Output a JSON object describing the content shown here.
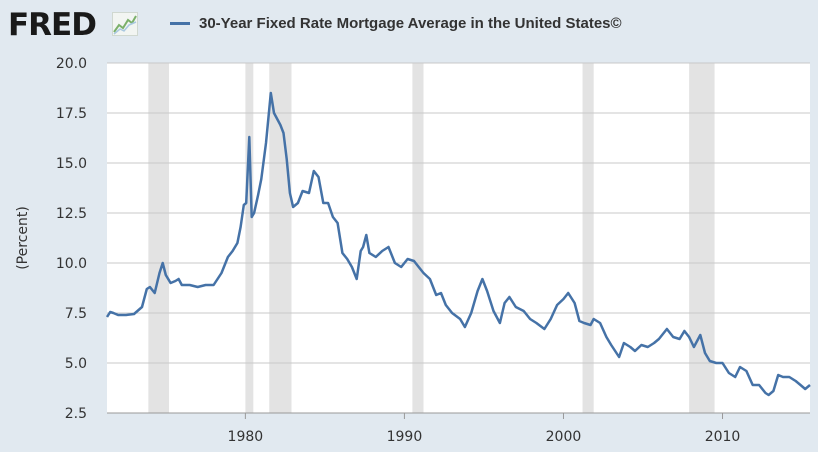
{
  "header": {
    "logo_text": "FRED",
    "logo_icon": "line-chart-icon"
  },
  "colors": {
    "background": "#e1e9f0",
    "plot_background": "#ffffff",
    "series": "#4572a7",
    "recession": "#e3e3e3",
    "grid": "#c8c8c8"
  },
  "chart_data": {
    "type": "line",
    "title": "",
    "xlabel": "",
    "ylabel": "(Percent)",
    "xlim": [
      1971.3,
      2015.5
    ],
    "ylim": [
      2.5,
      20.0
    ],
    "yticks": [
      2.5,
      5.0,
      7.5,
      10.0,
      12.5,
      15.0,
      17.5,
      20.0
    ],
    "ytick_labels": [
      "2.5",
      "5.0",
      "7.5",
      "10.0",
      "12.5",
      "15.0",
      "17.5",
      "20.0"
    ],
    "xticks": [
      1980,
      1990,
      2000,
      2010
    ],
    "xtick_labels": [
      "1980",
      "1990",
      "2000",
      "2010"
    ],
    "grid": "horizontal",
    "legend": "top",
    "recessions": [
      [
        1973.9,
        1975.2
      ],
      [
        1980.0,
        1980.5
      ],
      [
        1981.5,
        1982.9
      ],
      [
        1990.5,
        1991.2
      ],
      [
        2001.2,
        2001.9
      ],
      [
        2007.9,
        2009.5
      ]
    ],
    "series": [
      {
        "name": "30-Year Fixed Rate Mortgage Average in the United States©",
        "x": [
          1971.3,
          1971.5,
          1971.7,
          1972.0,
          1972.5,
          1973.0,
          1973.5,
          1973.8,
          1974.0,
          1974.3,
          1974.6,
          1974.8,
          1975.0,
          1975.3,
          1975.6,
          1975.8,
          1976.0,
          1976.5,
          1977.0,
          1977.5,
          1978.0,
          1978.5,
          1978.9,
          1979.2,
          1979.5,
          1979.7,
          1979.9,
          1980.05,
          1980.25,
          1980.4,
          1980.55,
          1980.8,
          1981.0,
          1981.3,
          1981.6,
          1981.8,
          1982.0,
          1982.2,
          1982.4,
          1982.6,
          1982.8,
          1983.0,
          1983.3,
          1983.6,
          1984.0,
          1984.3,
          1984.6,
          1984.9,
          1985.2,
          1985.5,
          1985.8,
          1986.1,
          1986.4,
          1986.7,
          1987.0,
          1987.25,
          1987.4,
          1987.6,
          1987.8,
          1988.2,
          1988.6,
          1989.0,
          1989.4,
          1989.8,
          1990.2,
          1990.6,
          1990.9,
          1991.2,
          1991.6,
          1992.0,
          1992.3,
          1992.6,
          1993.0,
          1993.5,
          1993.8,
          1994.2,
          1994.6,
          1994.9,
          1995.2,
          1995.6,
          1996.0,
          1996.3,
          1996.6,
          1997.0,
          1997.5,
          1997.9,
          1998.3,
          1998.8,
          1999.2,
          1999.6,
          2000.0,
          2000.3,
          2000.7,
          2001.0,
          2001.3,
          2001.7,
          2001.9,
          2002.3,
          2002.7,
          2003.0,
          2003.5,
          2003.8,
          2004.2,
          2004.5,
          2004.9,
          2005.3,
          2005.7,
          2006.0,
          2006.5,
          2006.9,
          2007.3,
          2007.6,
          2007.9,
          2008.2,
          2008.6,
          2008.9,
          2009.2,
          2009.6,
          2010.0,
          2010.4,
          2010.8,
          2011.1,
          2011.5,
          2011.9,
          2012.3,
          2012.7,
          2012.9,
          2013.2,
          2013.5,
          2013.8,
          2014.2,
          2014.6,
          2014.9,
          2015.2,
          2015.5
        ],
        "y": [
          7.3,
          7.55,
          7.5,
          7.4,
          7.4,
          7.45,
          7.8,
          8.7,
          8.8,
          8.5,
          9.5,
          10.0,
          9.4,
          9.0,
          9.1,
          9.2,
          8.9,
          8.9,
          8.8,
          8.9,
          8.9,
          9.5,
          10.3,
          10.6,
          11.0,
          11.8,
          12.9,
          13.0,
          16.3,
          12.3,
          12.5,
          13.4,
          14.2,
          16.0,
          18.5,
          17.5,
          17.2,
          16.9,
          16.5,
          15.2,
          13.5,
          12.8,
          13.0,
          13.6,
          13.5,
          14.6,
          14.3,
          13.0,
          13.0,
          12.3,
          12.0,
          10.5,
          10.2,
          9.8,
          9.2,
          10.6,
          10.8,
          11.4,
          10.5,
          10.3,
          10.6,
          10.8,
          10.0,
          9.8,
          10.2,
          10.1,
          9.8,
          9.5,
          9.2,
          8.4,
          8.5,
          7.9,
          7.5,
          7.2,
          6.8,
          7.5,
          8.6,
          9.2,
          8.6,
          7.6,
          7.0,
          8.0,
          8.3,
          7.8,
          7.6,
          7.2,
          7.0,
          6.7,
          7.2,
          7.9,
          8.2,
          8.5,
          8.0,
          7.1,
          7.0,
          6.9,
          7.2,
          7.0,
          6.3,
          5.9,
          5.3,
          6.0,
          5.8,
          5.6,
          5.9,
          5.8,
          6.0,
          6.2,
          6.7,
          6.3,
          6.2,
          6.6,
          6.3,
          5.8,
          6.4,
          5.5,
          5.1,
          5.0,
          5.0,
          4.5,
          4.3,
          4.8,
          4.6,
          3.9,
          3.9,
          3.5,
          3.4,
          3.6,
          4.4,
          4.3,
          4.3,
          4.1,
          3.9,
          3.7,
          3.9
        ]
      }
    ]
  }
}
